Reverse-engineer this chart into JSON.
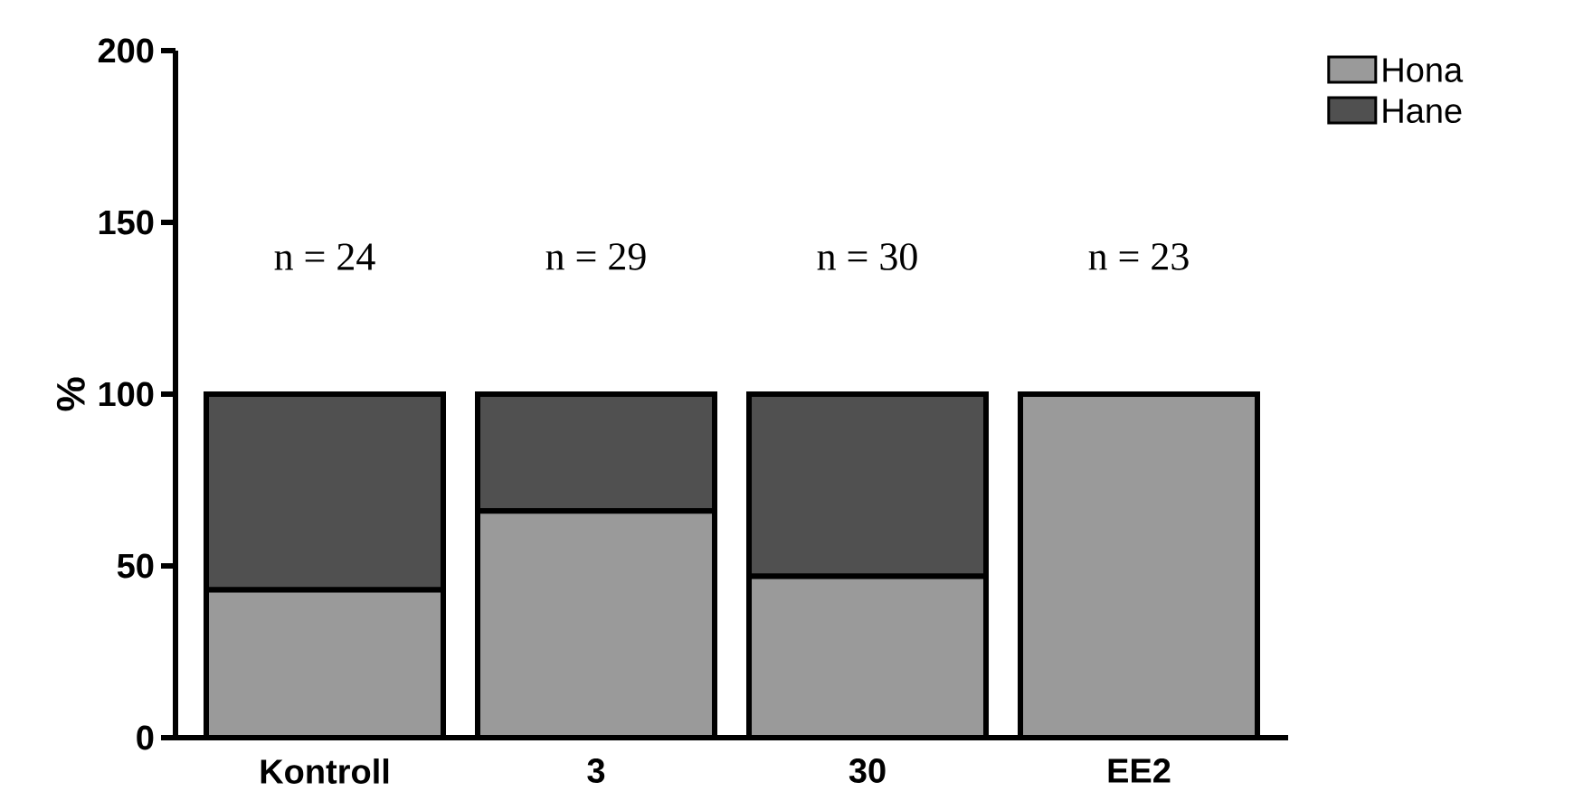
{
  "chart_data": {
    "type": "bar",
    "stacked": true,
    "ylabel": "%",
    "categories": [
      "Kontroll",
      "3",
      "30",
      "EE2"
    ],
    "series": [
      {
        "name": "Hona",
        "color": "#9a9a9a",
        "values": [
          43,
          66,
          47,
          100
        ]
      },
      {
        "name": "Hane",
        "color": "#505050",
        "values": [
          57,
          34,
          53,
          0
        ]
      }
    ],
    "ylim": [
      0,
      200
    ],
    "yticks": [
      0,
      50,
      100,
      150,
      200
    ],
    "legend": "top right",
    "annotations": [
      "n = 24",
      "n = 29",
      "n = 30",
      "n = 23"
    ]
  }
}
